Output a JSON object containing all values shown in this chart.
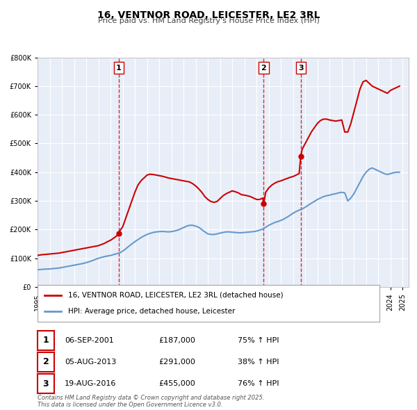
{
  "title": "16, VENTNOR ROAD, LEICESTER, LE2 3RL",
  "subtitle": "Price paid vs. HM Land Registry's House Price Index (HPI)",
  "legend_label_red": "16, VENTNOR ROAD, LEICESTER, LE2 3RL (detached house)",
  "legend_label_blue": "HPI: Average price, detached house, Leicester",
  "footnote": "Contains HM Land Registry data © Crown copyright and database right 2025.\nThis data is licensed under the Open Government Licence v3.0.",
  "purchases": [
    {
      "num": 1,
      "date": "06-SEP-2001",
      "price": 187000,
      "hpi_pct": "75% ↑ HPI",
      "year": 2001.68
    },
    {
      "num": 2,
      "date": "05-AUG-2013",
      "price": 291000,
      "hpi_pct": "38% ↑ HPI",
      "year": 2013.59
    },
    {
      "num": 3,
      "date": "19-AUG-2016",
      "price": 455000,
      "hpi_pct": "76% ↑ HPI",
      "year": 2016.63
    }
  ],
  "red_color": "#cc0000",
  "blue_color": "#6699cc",
  "vline_color": "#cc0000",
  "bg_color": "#e8eef8",
  "grid_color": "#ffffff",
  "ylim": [
    0,
    800000
  ],
  "xlim_start": 1995.0,
  "xlim_end": 2025.5,
  "hpi_data": {
    "years": [
      1995.0,
      1995.25,
      1995.5,
      1995.75,
      1996.0,
      1996.25,
      1996.5,
      1996.75,
      1997.0,
      1997.25,
      1997.5,
      1997.75,
      1998.0,
      1998.25,
      1998.5,
      1998.75,
      1999.0,
      1999.25,
      1999.5,
      1999.75,
      2000.0,
      2000.25,
      2000.5,
      2000.75,
      2001.0,
      2001.25,
      2001.5,
      2001.75,
      2002.0,
      2002.25,
      2002.5,
      2002.75,
      2003.0,
      2003.25,
      2003.5,
      2003.75,
      2004.0,
      2004.25,
      2004.5,
      2004.75,
      2005.0,
      2005.25,
      2005.5,
      2005.75,
      2006.0,
      2006.25,
      2006.5,
      2006.75,
      2007.0,
      2007.25,
      2007.5,
      2007.75,
      2008.0,
      2008.25,
      2008.5,
      2008.75,
      2009.0,
      2009.25,
      2009.5,
      2009.75,
      2010.0,
      2010.25,
      2010.5,
      2010.75,
      2011.0,
      2011.25,
      2011.5,
      2011.75,
      2012.0,
      2012.25,
      2012.5,
      2012.75,
      2013.0,
      2013.25,
      2013.5,
      2013.75,
      2014.0,
      2014.25,
      2014.5,
      2014.75,
      2015.0,
      2015.25,
      2015.5,
      2015.75,
      2016.0,
      2016.25,
      2016.5,
      2016.75,
      2017.0,
      2017.25,
      2017.5,
      2017.75,
      2018.0,
      2018.25,
      2018.5,
      2018.75,
      2019.0,
      2019.25,
      2019.5,
      2019.75,
      2020.0,
      2020.25,
      2020.5,
      2020.75,
      2021.0,
      2021.25,
      2021.5,
      2021.75,
      2022.0,
      2022.25,
      2022.5,
      2022.75,
      2023.0,
      2023.25,
      2023.5,
      2023.75,
      2024.0,
      2024.25,
      2024.5,
      2024.75
    ],
    "values": [
      60000,
      61000,
      62000,
      62500,
      63000,
      64000,
      65000,
      66000,
      68000,
      70000,
      72000,
      74000,
      76000,
      78000,
      80000,
      82000,
      85000,
      88000,
      92000,
      96000,
      100000,
      103000,
      106000,
      108000,
      110000,
      113000,
      116000,
      119000,
      125000,
      133000,
      142000,
      150000,
      158000,
      165000,
      172000,
      178000,
      183000,
      187000,
      190000,
      192000,
      193000,
      193500,
      193000,
      192000,
      193000,
      195000,
      198000,
      202000,
      207000,
      212000,
      215000,
      215000,
      212000,
      208000,
      200000,
      192000,
      185000,
      183000,
      183000,
      185000,
      188000,
      190000,
      192000,
      192000,
      191000,
      190000,
      189000,
      189000,
      190000,
      191000,
      192000,
      193000,
      195000,
      198000,
      202000,
      208000,
      215000,
      220000,
      225000,
      228000,
      232000,
      237000,
      243000,
      250000,
      257000,
      263000,
      268000,
      272000,
      278000,
      285000,
      292000,
      298000,
      305000,
      310000,
      315000,
      318000,
      320000,
      323000,
      325000,
      328000,
      330000,
      328000,
      300000,
      310000,
      325000,
      345000,
      365000,
      385000,
      400000,
      410000,
      415000,
      410000,
      405000,
      400000,
      395000,
      392000,
      395000,
      398000,
      400000,
      400000
    ]
  },
  "red_data": {
    "years": [
      1995.0,
      1995.25,
      1995.5,
      1995.75,
      1996.0,
      1996.25,
      1996.5,
      1996.75,
      1997.0,
      1997.25,
      1997.5,
      1997.75,
      1998.0,
      1998.25,
      1998.5,
      1998.75,
      1999.0,
      1999.25,
      1999.5,
      1999.75,
      2000.0,
      2000.25,
      2000.5,
      2000.75,
      2001.0,
      2001.25,
      2001.5,
      2001.68,
      2001.75,
      2002.0,
      2002.25,
      2002.5,
      2002.75,
      2003.0,
      2003.25,
      2003.5,
      2003.75,
      2004.0,
      2004.25,
      2004.5,
      2004.75,
      2005.0,
      2005.25,
      2005.5,
      2005.75,
      2006.0,
      2006.25,
      2006.5,
      2006.75,
      2007.0,
      2007.25,
      2007.5,
      2007.75,
      2008.0,
      2008.25,
      2008.5,
      2008.75,
      2009.0,
      2009.25,
      2009.5,
      2009.75,
      2010.0,
      2010.25,
      2010.5,
      2010.75,
      2011.0,
      2011.25,
      2011.5,
      2011.75,
      2012.0,
      2012.25,
      2012.5,
      2012.75,
      2013.0,
      2013.25,
      2013.5,
      2013.59,
      2013.75,
      2014.0,
      2014.25,
      2014.5,
      2014.75,
      2015.0,
      2015.25,
      2015.5,
      2015.75,
      2016.0,
      2016.25,
      2016.5,
      2016.63,
      2016.75,
      2017.0,
      2017.25,
      2017.5,
      2017.75,
      2018.0,
      2018.25,
      2018.5,
      2018.75,
      2019.0,
      2019.25,
      2019.5,
      2019.75,
      2020.0,
      2020.25,
      2020.5,
      2020.75,
      2021.0,
      2021.25,
      2021.5,
      2021.75,
      2022.0,
      2022.25,
      2022.5,
      2022.75,
      2023.0,
      2023.25,
      2023.5,
      2023.75,
      2024.0,
      2024.25,
      2024.5,
      2024.75
    ],
    "values": [
      110000,
      112000,
      113000,
      114000,
      115000,
      116000,
      117000,
      118000,
      120000,
      122000,
      124000,
      126000,
      128000,
      130000,
      132000,
      134000,
      136000,
      138000,
      140000,
      142000,
      144000,
      148000,
      152000,
      158000,
      163000,
      170000,
      178000,
      187000,
      195000,
      210000,
      240000,
      270000,
      300000,
      330000,
      355000,
      370000,
      380000,
      390000,
      393000,
      392000,
      390000,
      388000,
      386000,
      383000,
      380000,
      378000,
      376000,
      374000,
      372000,
      370000,
      368000,
      366000,
      360000,
      352000,
      342000,
      330000,
      315000,
      305000,
      298000,
      295000,
      298000,
      308000,
      318000,
      325000,
      330000,
      335000,
      332000,
      328000,
      322000,
      320000,
      318000,
      315000,
      310000,
      305000,
      305000,
      310000,
      291000,
      330000,
      345000,
      355000,
      362000,
      367000,
      370000,
      374000,
      378000,
      382000,
      385000,
      390000,
      395000,
      455000,
      480000,
      500000,
      520000,
      540000,
      555000,
      570000,
      580000,
      585000,
      585000,
      582000,
      580000,
      578000,
      580000,
      582000,
      540000,
      540000,
      570000,
      610000,
      650000,
      690000,
      715000,
      720000,
      710000,
      700000,
      695000,
      690000,
      685000,
      680000,
      675000,
      685000,
      690000,
      695000,
      700000
    ]
  }
}
